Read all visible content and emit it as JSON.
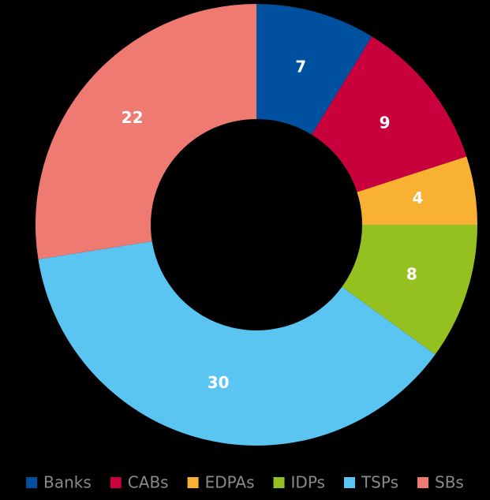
{
  "chart_data": {
    "type": "pie",
    "donut": true,
    "categories": [
      "Banks",
      "CABs",
      "EDPAs",
      "IDPs",
      "TSPs",
      "SBs"
    ],
    "values": [
      7,
      9,
      4,
      8,
      30,
      22
    ],
    "colors": [
      "#0050a0",
      "#c8003c",
      "#f8b133",
      "#94c11f",
      "#5bc5f2",
      "#ef7a72"
    ],
    "legend": "bottom"
  }
}
